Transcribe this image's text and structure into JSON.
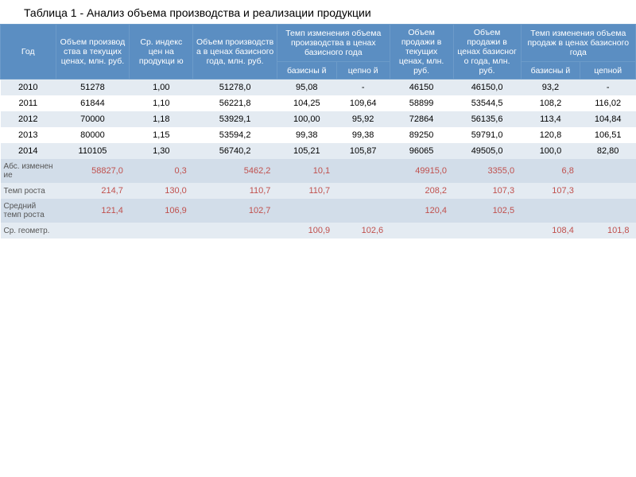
{
  "title": "Таблица 1 - Анализ объема производства и реализации продукции",
  "colors": {
    "header_bg": "#5b8ec2",
    "header_text": "#ffffff",
    "row_odd": "#e4ebf2",
    "row_even": "#ffffff",
    "summary_bg": "#d2dde9",
    "summary_text": "#c0504d"
  },
  "headers": {
    "col0": "Год",
    "col1": "Объем производ ства в текущих ценах, млн. руб.",
    "col2": "Ср. индекс цен на продукци ю",
    "col3": "Объем производств а в ценах базисного года, млн. руб.",
    "col4_group": "Темп изменения объема производства в ценах базисного года",
    "col4a": "базисны й",
    "col4b": "цепно й",
    "col5": "Объем продажи в текущих ценах, млн. руб.",
    "col6": "Объем продажи в ценах базисног о года, млн. руб.",
    "col7_group": "Темп изменения объема продаж в ценах базисного года",
    "col7a": "базисны й",
    "col7b": "цепной"
  },
  "rows": [
    {
      "year": "2010",
      "c1": "51278",
      "c2": "1,00",
      "c3": "51278,0",
      "c4a": "95,08",
      "c4b": "-",
      "c5": "46150",
      "c6": "46150,0",
      "c7a": "93,2",
      "c7b": "-"
    },
    {
      "year": "2011",
      "c1": "61844",
      "c2": "1,10",
      "c3": "56221,8",
      "c4a": "104,25",
      "c4b": "109,64",
      "c5": "58899",
      "c6": "53544,5",
      "c7a": "108,2",
      "c7b": "116,02"
    },
    {
      "year": "2012",
      "c1": "70000",
      "c2": "1,18",
      "c3": "53929,1",
      "c4a": "100,00",
      "c4b": "95,92",
      "c5": "72864",
      "c6": "56135,6",
      "c7a": "113,4",
      "c7b": "104,84"
    },
    {
      "year": "2013",
      "c1": "80000",
      "c2": "1,15",
      "c3": "53594,2",
      "c4a": "99,38",
      "c4b": "99,38",
      "c5": "89250",
      "c6": "59791,0",
      "c7a": "120,8",
      "c7b": "106,51"
    },
    {
      "year": "2014",
      "c1": "110105",
      "c2": "1,30",
      "c3": "56740,2",
      "c4a": "105,21",
      "c4b": "105,87",
      "c5": "96065",
      "c6": "49505,0",
      "c7a": "100,0",
      "c7b": "82,80"
    }
  ],
  "summary": [
    {
      "label": "Абс. изменен ие",
      "v": [
        "58827,0",
        "0,3",
        "5462,2",
        "10,1",
        "",
        "49915,0",
        "3355,0",
        "6,8",
        ""
      ]
    },
    {
      "label": "Темп роста",
      "v": [
        "214,7",
        "130,0",
        "110,7",
        "110,7",
        "",
        "208,2",
        "107,3",
        "107,3",
        ""
      ]
    },
    {
      "label": "Средний темп роста",
      "v": [
        "121,4",
        "106,9",
        "102,7",
        "",
        "",
        "120,4",
        "102,5",
        "",
        ""
      ]
    },
    {
      "label": "Ср. геометр.",
      "v": [
        "",
        "",
        "",
        "100,9",
        "102,6",
        "",
        "",
        "108,4",
        "101,8"
      ]
    }
  ]
}
